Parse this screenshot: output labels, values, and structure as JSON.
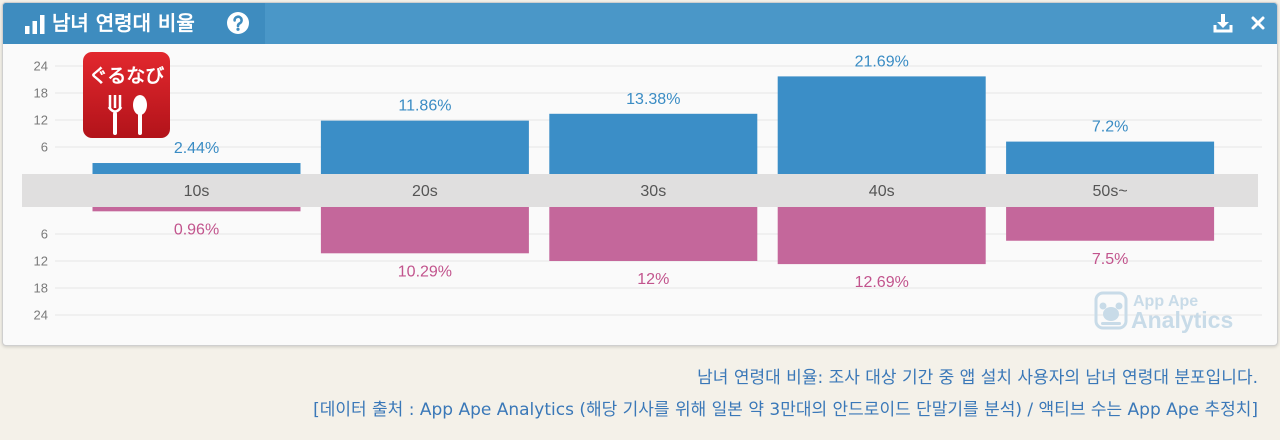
{
  "header": {
    "title": "남녀 연령대 비율",
    "icons": {
      "chart": "bar-chart-icon",
      "help": "help-circle-icon",
      "download": "download-icon",
      "close": "close-icon"
    }
  },
  "app_logo": {
    "text": "ぐるなび",
    "icon": "fork-spoon-icon"
  },
  "watermark": {
    "line1": "App Ape",
    "line2": "Analytics",
    "icon": "ape-face-icon"
  },
  "chart_data": {
    "type": "bar",
    "style": "diverging",
    "categories": [
      "10s",
      "20s",
      "30s",
      "40s",
      "50s~"
    ],
    "series": [
      {
        "values": [
          2.44,
          11.86,
          13.38,
          21.69,
          7.2
        ],
        "data_labels": [
          "2.44%",
          "11.86%",
          "13.38%",
          "21.69%",
          "7.2%"
        ],
        "color": "#3b8ec7",
        "label_color": "#3a8cc4"
      },
      {
        "values": [
          0.96,
          10.29,
          12,
          12.69,
          7.5
        ],
        "data_labels": [
          "0.96%",
          "10.29%",
          "12%",
          "12.69%",
          "7.5%"
        ],
        "color": "#c4679b",
        "label_color": "#c2548d"
      }
    ],
    "y_ticks": [
      6,
      12,
      18,
      24
    ],
    "ylim": [
      0,
      24
    ],
    "grid": true
  },
  "caption": {
    "line1": "남녀 연령대 비율: 조사 대상 기간 중 앱 설치 사용자의 남녀 연령대 분포입니다.",
    "line2": "[데이터 출처 : App Ape Analytics (해당 기사를 위해 일본 약 3만대의 안드로이드 단말기를 분석) / 액티브 수는 App Ape 추정치]"
  },
  "colors": {
    "header": "#4a97c8",
    "header_title_tab": "#3e8cbf",
    "category_band": "#e0dfdf",
    "caption_text": "#3a78b8",
    "logo": "#c8161d",
    "watermark": "#c8dbe8"
  }
}
